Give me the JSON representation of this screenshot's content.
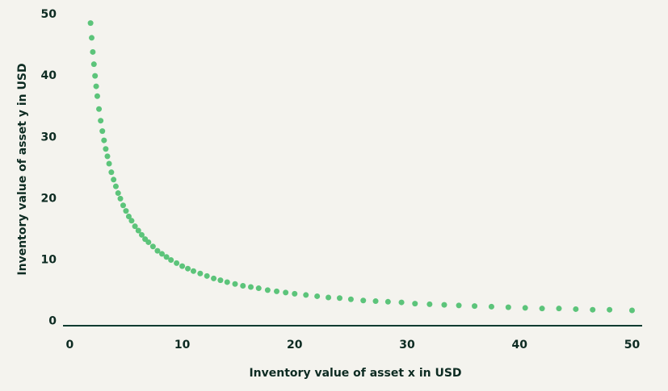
{
  "chart_data": {
    "type": "scatter",
    "x_label": "Inventory value of asset x in USD",
    "y_label": "Inventory value of asset y in USD",
    "color": "#5cc47a",
    "x": [
      1.85,
      1.95,
      2.05,
      2.15,
      2.25,
      2.35,
      2.45,
      2.6,
      2.75,
      2.9,
      3.05,
      3.2,
      3.35,
      3.5,
      3.7,
      3.9,
      4.1,
      4.3,
      4.5,
      4.75,
      5,
      5.25,
      5.5,
      5.8,
      6.1,
      6.4,
      6.7,
      7,
      7.4,
      7.8,
      8.2,
      8.6,
      9,
      9.5,
      10,
      10.5,
      11,
      11.6,
      12.2,
      12.8,
      13.4,
      14,
      14.7,
      15.4,
      16.1,
      16.8,
      17.6,
      18.4,
      19.2,
      20,
      21,
      22,
      23,
      24,
      25,
      26.1,
      27.2,
      28.3,
      29.5,
      30.7,
      32,
      33.3,
      34.6,
      36,
      37.5,
      39,
      40.5,
      42,
      43.5,
      45,
      46.5,
      48,
      50
    ],
    "values": [
      48.6,
      46.2,
      43.9,
      41.9,
      40.0,
      38.3,
      36.7,
      34.6,
      32.7,
      31.0,
      29.5,
      28.1,
      26.9,
      25.7,
      24.3,
      23.1,
      22.0,
      20.9,
      20.0,
      18.9,
      18.0,
      17.1,
      16.4,
      15.5,
      14.8,
      14.1,
      13.4,
      12.9,
      12.2,
      11.5,
      11.0,
      10.5,
      10.0,
      9.5,
      9.0,
      8.6,
      8.2,
      7.8,
      7.4,
      7.0,
      6.7,
      6.4,
      6.1,
      5.8,
      5.6,
      5.4,
      5.1,
      4.9,
      4.7,
      4.5,
      4.3,
      4.1,
      3.9,
      3.8,
      3.6,
      3.4,
      3.3,
      3.2,
      3.1,
      2.9,
      2.8,
      2.7,
      2.6,
      2.5,
      2.4,
      2.3,
      2.2,
      2.1,
      2.1,
      2.0,
      1.9,
      1.9,
      1.8
    ],
    "xlim": [
      -0.6,
      50.9
    ],
    "xticks": [
      0,
      10,
      20,
      30,
      40,
      50
    ],
    "ylim": [
      -0.7,
      50
    ],
    "yticks": [
      0,
      10,
      20,
      30,
      40,
      50
    ]
  }
}
